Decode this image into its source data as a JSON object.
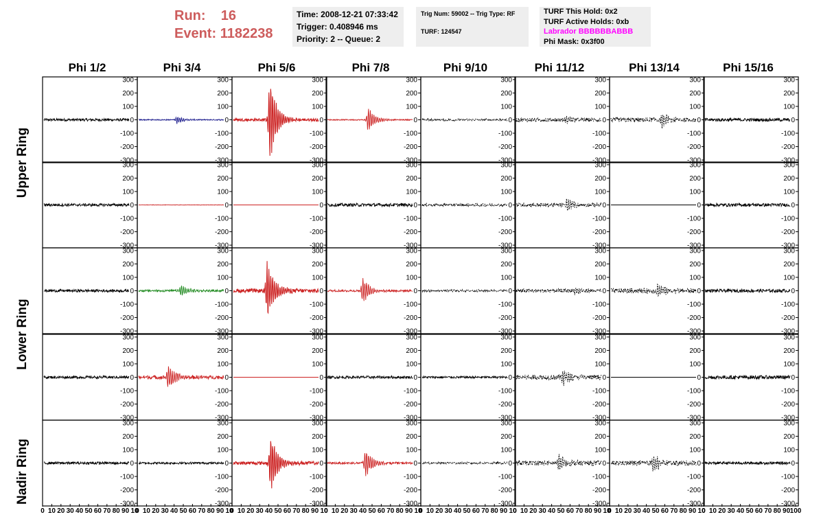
{
  "run_info": {
    "run_label": "Run:",
    "run_value": "16",
    "event_label": "Event:",
    "event_value": "1182238"
  },
  "time_box": {
    "time": "Time: 2008-12-21 07:33:42",
    "trigger": "Trigger: 0.408946 ms",
    "priority": "Priority: 2 -- Queue: 2"
  },
  "trig_box": {
    "trig_line": "Trig Num: 59002 -- Trig Type: RF",
    "turf_line": "TURF: 124547"
  },
  "turf_box": {
    "this_hold": "TURF This Hold: 0x2",
    "active_holds": "TURF Active Holds: 0xb",
    "labrador": "Labrador BBBBBBABBB",
    "phi_mask": "Phi Mask: 0x3f00"
  },
  "colors": {
    "run_text": "#cd5c5c",
    "labrador_text": "#ff00ff",
    "trace_black": "#000000",
    "trace_red": "#cc2222",
    "trace_blue": "#1a1a8c",
    "trace_green": "#228b22"
  },
  "column_headers": [
    "Phi 1/2",
    "Phi 3/4",
    "Phi 5/6",
    "Phi 7/8",
    "Phi 9/10",
    "Phi 11/12",
    "Phi 13/14",
    "Phi 15/16"
  ],
  "ring_labels": [
    "Upper Ring",
    "Lower Ring",
    "Nadir Ring"
  ],
  "chart_data": {
    "type": "line",
    "panel_rows": 5,
    "panel_cols": 8,
    "ylim": [
      -320,
      320
    ],
    "yticks": [
      -300,
      -200,
      -100,
      0,
      100,
      200,
      300
    ],
    "xlim": [
      0,
      100
    ],
    "xtick_labels": [
      "0",
      "10",
      "20",
      "30",
      "40",
      "50",
      "60",
      "70",
      "80",
      "90",
      "100"
    ],
    "xtick_text_per_panel": [
      "0",
      "10",
      "20",
      "30",
      "40",
      "50",
      "60",
      "70",
      "80",
      "90",
      "10"
    ],
    "last_xtick_text": "100",
    "panels": [
      [
        {
          "color": "black",
          "amp": 10,
          "pulse": 0,
          "center": 0,
          "dashed": false
        },
        {
          "color": "blue",
          "amp": 4,
          "pulse": 25,
          "center": 45,
          "dashed": false
        },
        {
          "color": "red",
          "amp": 10,
          "pulse": 290,
          "center": 43,
          "dashed": false
        },
        {
          "color": "red",
          "amp": 4,
          "pulse": 80,
          "center": 48,
          "dashed": false
        },
        {
          "color": "black",
          "amp": 8,
          "pulse": 0,
          "center": 0,
          "dashed": true
        },
        {
          "color": "black",
          "amp": 14,
          "pulse": 20,
          "center": 60,
          "dashed": true
        },
        {
          "color": "black",
          "amp": 16,
          "pulse": 50,
          "center": 60,
          "dashed": true
        },
        {
          "color": "black",
          "amp": 12,
          "pulse": 0,
          "center": 0,
          "dashed": false
        }
      ],
      [
        {
          "color": "black",
          "amp": 10,
          "pulse": 0,
          "center": 0,
          "dashed": false
        },
        {
          "color": "red",
          "amp": 1.5,
          "pulse": 0,
          "center": 0,
          "dashed": false
        },
        {
          "color": "red",
          "amp": 0,
          "pulse": 0,
          "center": 0,
          "dashed": false
        },
        {
          "color": "black",
          "amp": 12,
          "pulse": 0,
          "center": 0,
          "dashed": false
        },
        {
          "color": "black",
          "amp": 10,
          "pulse": 0,
          "center": 0,
          "dashed": true
        },
        {
          "color": "black",
          "amp": 14,
          "pulse": 45,
          "center": 60,
          "dashed": true
        },
        {
          "color": "black",
          "amp": 0,
          "pulse": 0,
          "center": 0,
          "dashed": false
        },
        {
          "color": "black",
          "amp": 12,
          "pulse": 0,
          "center": 0,
          "dashed": false
        }
      ],
      [
        {
          "color": "black",
          "amp": 10,
          "pulse": 0,
          "center": 0,
          "dashed": false
        },
        {
          "color": "green",
          "amp": 8,
          "pulse": 40,
          "center": 50,
          "dashed": false
        },
        {
          "color": "red",
          "amp": 14,
          "pulse": 200,
          "center": 40,
          "dashed": false
        },
        {
          "color": "red",
          "amp": 8,
          "pulse": 90,
          "center": 42,
          "dashed": false
        },
        {
          "color": "black",
          "amp": 8,
          "pulse": 0,
          "center": 0,
          "dashed": true
        },
        {
          "color": "black",
          "amp": 14,
          "pulse": 25,
          "center": 70,
          "dashed": true
        },
        {
          "color": "black",
          "amp": 18,
          "pulse": 45,
          "center": 55,
          "dashed": true
        },
        {
          "color": "black",
          "amp": 12,
          "pulse": 0,
          "center": 0,
          "dashed": false
        }
      ],
      [
        {
          "color": "black",
          "amp": 10,
          "pulse": 0,
          "center": 0,
          "dashed": false
        },
        {
          "color": "red",
          "amp": 14,
          "pulse": 90,
          "center": 35,
          "dashed": false
        },
        {
          "color": "red",
          "amp": 0,
          "pulse": 0,
          "center": 0,
          "dashed": false
        },
        {
          "color": "black",
          "amp": 10,
          "pulse": 0,
          "center": 0,
          "dashed": false
        },
        {
          "color": "black",
          "amp": 8,
          "pulse": 0,
          "center": 0,
          "dashed": false
        },
        {
          "color": "black",
          "amp": 18,
          "pulse": 55,
          "center": 55,
          "dashed": true
        },
        {
          "color": "black",
          "amp": 0,
          "pulse": 0,
          "center": 0,
          "dashed": false
        },
        {
          "color": "black",
          "amp": 14,
          "pulse": 0,
          "center": 0,
          "dashed": false
        }
      ],
      [
        {
          "color": "black",
          "amp": 10,
          "pulse": 0,
          "center": 0,
          "dashed": false
        },
        {
          "color": "black",
          "amp": 8,
          "pulse": 0,
          "center": 0,
          "dashed": false
        },
        {
          "color": "red",
          "amp": 12,
          "pulse": 200,
          "center": 44,
          "dashed": false
        },
        {
          "color": "red",
          "amp": 8,
          "pulse": 95,
          "center": 45,
          "dashed": false
        },
        {
          "color": "black",
          "amp": 8,
          "pulse": 0,
          "center": 0,
          "dashed": true
        },
        {
          "color": "black",
          "amp": 18,
          "pulse": 60,
          "center": 50,
          "dashed": true
        },
        {
          "color": "black",
          "amp": 18,
          "pulse": 60,
          "center": 50,
          "dashed": true
        },
        {
          "color": "black",
          "amp": 10,
          "pulse": 0,
          "center": 0,
          "dashed": false
        }
      ]
    ]
  }
}
